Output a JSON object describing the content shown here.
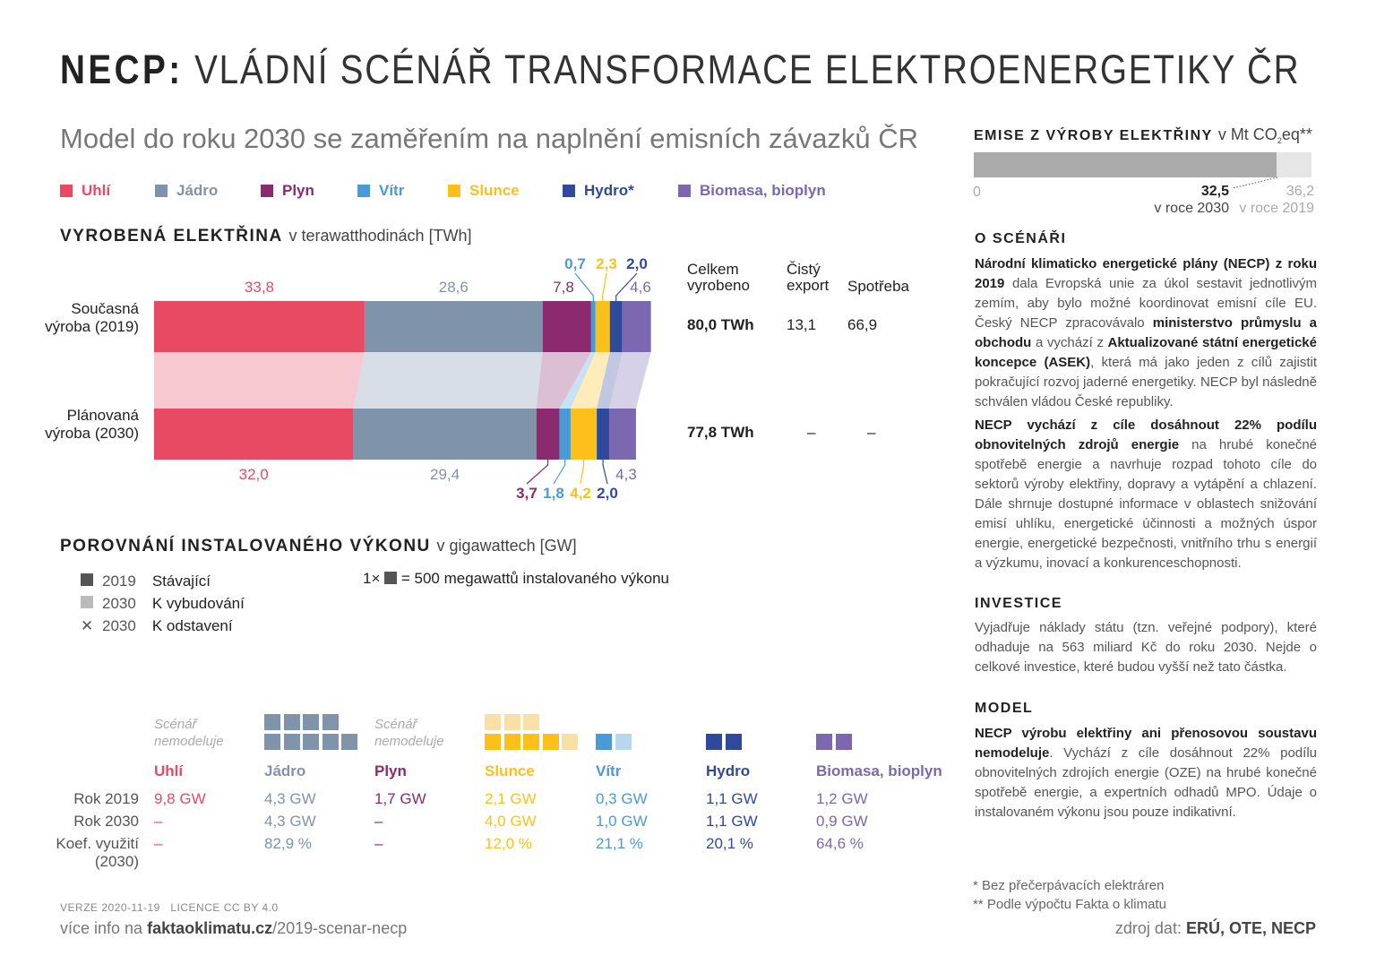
{
  "title": {
    "bold": "NECP:",
    "rest": "VLÁDNÍ SCÉNÁŘ TRANSFORMACE ELEKTROENERGETIKY ČR"
  },
  "subtitle": "Model do roku 2030 se zaměřením na naplnění emisních závazků ČR",
  "legend": [
    {
      "label": "Uhlí",
      "color": "#e84a64"
    },
    {
      "label": "Jádro",
      "color": "#7f93aa"
    },
    {
      "label": "Plyn",
      "color": "#8b2a6e"
    },
    {
      "label": "Vítr",
      "color": "#4a9ad6"
    },
    {
      "label": "Slunce",
      "color": "#fdc01a"
    },
    {
      "label": "Hydro*",
      "color": "#2f4a9a"
    },
    {
      "label": "Biomasa, bioplyn",
      "color": "#7b68b0"
    }
  ],
  "production": {
    "heading": "VYROBENÁ ELEKTŘINA",
    "unit": "v terawatthodinách [TWh]",
    "row_labels": [
      "Současná výroba (2019)",
      "Plánovaná výroba (2030)"
    ],
    "columns": [
      "Celkem vyrobeno",
      "Čistý export",
      "Spotřeba"
    ],
    "totals": [
      [
        "80,0 TWh",
        "13,1",
        "66,9"
      ],
      [
        "77,8 TWh",
        "–",
        "–"
      ]
    ]
  },
  "chart_data": {
    "type": "bar",
    "stacked": true,
    "orientation": "horizontal",
    "categories": [
      "Současná výroba (2019)",
      "Plánovaná výroba (2030)"
    ],
    "unit": "TWh",
    "series": [
      {
        "name": "Uhlí",
        "values": [
          33.8,
          32.0
        ],
        "labels": [
          "33,8",
          "32,0"
        ],
        "color": "#e84a64"
      },
      {
        "name": "Jádro",
        "values": [
          28.6,
          29.4
        ],
        "labels": [
          "28,6",
          "29,4"
        ],
        "color": "#7f93aa"
      },
      {
        "name": "Plyn",
        "values": [
          7.8,
          3.7
        ],
        "labels": [
          "7,8",
          "3,7"
        ],
        "color": "#8b2a6e"
      },
      {
        "name": "Vítr",
        "values": [
          0.7,
          1.8
        ],
        "labels": [
          "0,7",
          "1,8"
        ],
        "color": "#4a9ad6"
      },
      {
        "name": "Slunce",
        "values": [
          2.3,
          4.2
        ],
        "labels": [
          "2,3",
          "4,2"
        ],
        "color": "#fdc01a"
      },
      {
        "name": "Hydro*",
        "values": [
          2.0,
          2.0
        ],
        "labels": [
          "2,0",
          "2,0"
        ],
        "color": "#2f4a9a"
      },
      {
        "name": "Biomasa, bioplyn",
        "values": [
          4.6,
          4.3
        ],
        "labels": [
          "4,6",
          "4,3"
        ],
        "color": "#7b68b0"
      }
    ]
  },
  "emissions": {
    "heading": "EMISE Z VÝROBY ELEKTŘINY",
    "unit_prefix": "v Mt CO",
    "unit_sub": "2",
    "unit_suffix": "eq**",
    "axis_min": "0",
    "value_2030": 32.5,
    "value_2030_label": "32,5",
    "label_2030": "v roce 2030",
    "value_2019": 36.2,
    "value_2019_label": "36,2",
    "label_2019": "v roce 2019"
  },
  "capacity": {
    "heading": "POROVNÁNÍ INSTALOVANÉHO VÝKONU",
    "unit": "v gigawattech [GW]",
    "key": [
      {
        "year": "2019",
        "label": "Stávající",
        "symbol": "dark-square"
      },
      {
        "year": "2030",
        "label": "K vybudování",
        "symbol": "light-square"
      },
      {
        "year": "2030",
        "label": "K odstavení",
        "symbol": "cross"
      }
    ],
    "scale_prefix": "1×",
    "scale_text": "= 500 megawattů instalovaného výkonu",
    "not_modelled": "Scénář nemodeluje",
    "row_labels": [
      "Rok 2019",
      "Rok 2030",
      "Koef. využití (2030)"
    ],
    "sources": [
      {
        "name": "Uhlí",
        "color": "#e84a64",
        "light": "#f5b8c2",
        "r2019": "9,8 GW",
        "r2030": "–",
        "coef": "–",
        "modelled": false,
        "squares": []
      },
      {
        "name": "Jádro",
        "color": "#7f93aa",
        "light": "#c9d2dc",
        "r2019": "4,3 GW",
        "r2030": "4,3 GW",
        "coef": "82,9 %",
        "modelled": true,
        "squares": [
          [
            "d",
            "d",
            "d",
            "d"
          ],
          [
            "d",
            "d",
            "d",
            "d",
            "d"
          ]
        ]
      },
      {
        "name": "Plyn",
        "color": "#8b2a6e",
        "light": "#d6b0c9",
        "r2019": "1,7 GW",
        "r2030": "–",
        "coef": "–",
        "modelled": false,
        "squares": []
      },
      {
        "name": "Slunce",
        "color": "#fdc01a",
        "light": "#f9e0a6",
        "r2019": "2,1 GW",
        "r2030": "4,0 GW",
        "coef": "12,0 %",
        "modelled": true,
        "squares": [
          [
            "l",
            "l",
            "l"
          ],
          [
            "d",
            "d",
            "d",
            "d",
            "l"
          ]
        ]
      },
      {
        "name": "Vítr",
        "color": "#4a9ad6",
        "light": "#b7d7f0",
        "r2019": "0,3 GW",
        "r2030": "1,0 GW",
        "coef": "21,1 %",
        "modelled": true,
        "squares": [
          [],
          [
            "d",
            "l"
          ]
        ]
      },
      {
        "name": "Hydro",
        "color": "#2f4a9a",
        "light": "#aab6d8",
        "r2019": "1,1 GW",
        "r2030": "1,1 GW",
        "coef": "20,1 %",
        "modelled": true,
        "squares": [
          [],
          [
            "d",
            "d"
          ]
        ]
      },
      {
        "name": "Biomasa, bioplyn",
        "color": "#7b68b0",
        "light": "#cbc3e2",
        "r2019": "1,2 GW",
        "r2030": "0,9 GW",
        "coef": "64,6 %",
        "modelled": true,
        "squares": [
          [],
          [
            "d",
            "d"
          ]
        ]
      }
    ]
  },
  "about": {
    "heading": "O SCÉNÁŘI",
    "p1": [
      {
        "b": true,
        "t": "Národní klimaticko energetické plány (NECP) z roku 2019"
      },
      {
        "b": false,
        "t": " dala Evropská unie za úkol sestavit jednotlivým zemím, aby bylo možné koordinovat emisní cíle EU. Český NECP zpracovávalo "
      },
      {
        "b": true,
        "t": "ministerstvo průmyslu a obchodu"
      },
      {
        "b": false,
        "t": " a vychází z "
      },
      {
        "b": true,
        "t": "Aktualizované státní energetické koncepce (ASEK)"
      },
      {
        "b": false,
        "t": ", která má jako jeden z cílů zajistit pokračující rozvoj jaderné energetiky. NECP byl následně schválen vládou České republiky."
      }
    ],
    "p2": [
      {
        "b": true,
        "t": "NECP vychází z cíle dosáhnout 22% podílu obnovitelných zdrojů energie"
      },
      {
        "b": false,
        "t": " na hrubé konečné spotřebě energie a navrhuje rozpad tohoto cíle do sektorů výroby elektřiny, dopravy a vytápění a chlazení. Dále shrnuje dostupné informace v oblastech snižování emisí uhlíku, energetické účinnosti a možných úspor energie, energetické bezpečnosti, vnitřního trhu s energií a výzkumu, inovací a konkurenceschopnosti."
      }
    ]
  },
  "investice": {
    "heading": "INVESTICE",
    "text": "Vyjadřuje náklady státu (tzn. veřejné podpory), které odhaduje na 563 miliard Kč do roku 2030. Nejde o celkové investice, které budou vyšší než tato částka."
  },
  "model": {
    "heading": "MODEL",
    "bold": "NECP výrobu elektřiny ani přenosovou soustavu nemodeluje",
    "text": ". Vychází z cíle dosáhnout 22% podílu obnovitelných zdrojích energie (OZE) na hrubé konečné spotřebě energie, a expertních odhadů MPO. Údaje o instalovaném výkonu jsou pouze indikativní."
  },
  "footnotes": [
    "* Bez přečerpávacích elektráren",
    "** Podle výpočtu Fakta o klimatu"
  ],
  "source": {
    "prefix": "zdroj dat:",
    "value": "ERÚ, OTE, NECP"
  },
  "footer": {
    "version": "VERZE 2020-11-19",
    "license": "LICENCE CC BY 4.0",
    "more_prefix": "více info na",
    "domain": "faktaoklimatu.cz",
    "path": "/2019-scenar-necp"
  }
}
